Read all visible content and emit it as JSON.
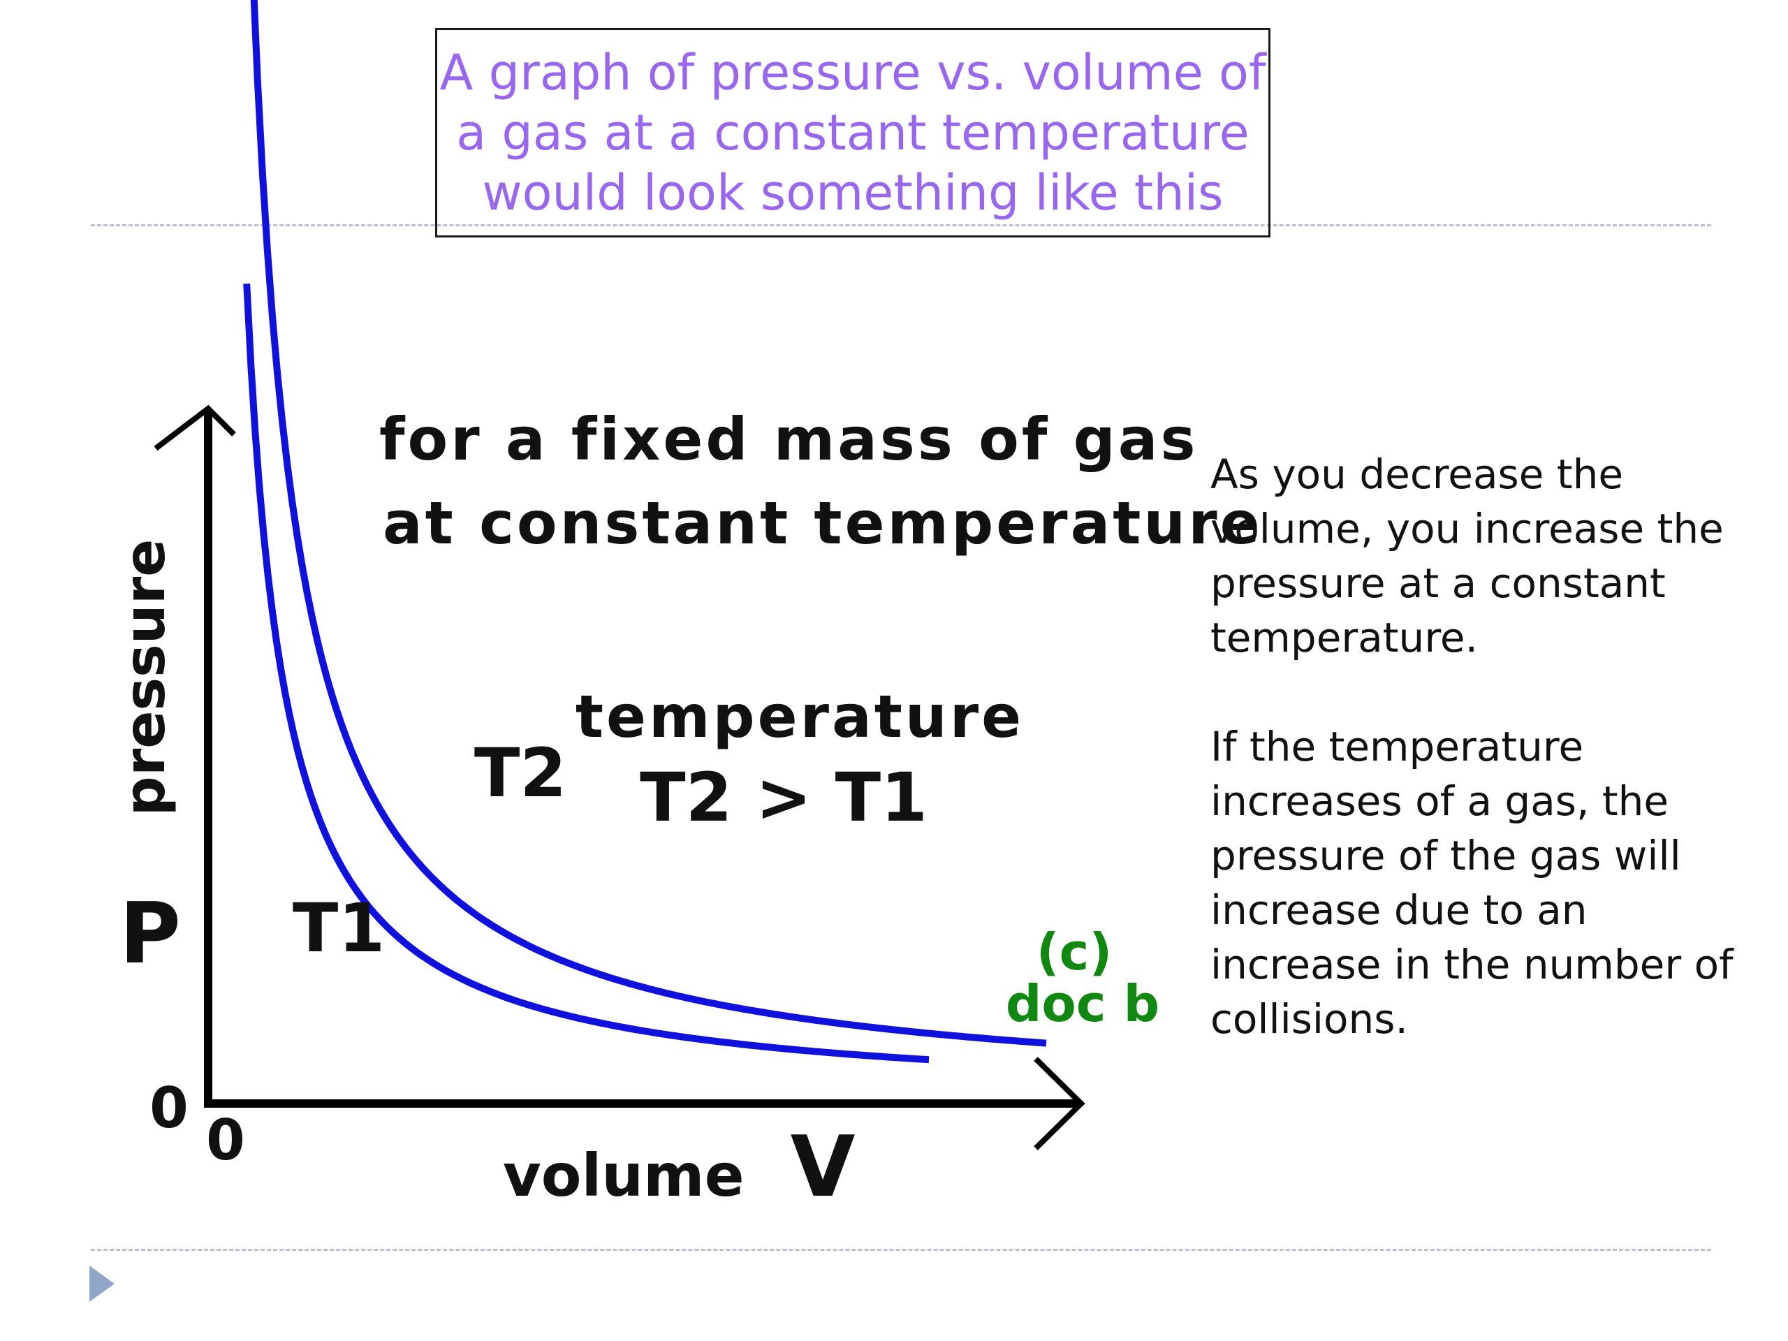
{
  "header": {
    "title_lines": [
      "A graph of pressure vs. volume of",
      "a gas at a constant temperature",
      "would look something like this"
    ],
    "title_color": "#9966ee"
  },
  "chart_data": {
    "type": "line",
    "title_lines": [
      "for a fixed mass of gas",
      "at constant temperature"
    ],
    "ylabel": "pressure",
    "ylabel_symbol": "P",
    "xlabel": "volume",
    "xlabel_symbol": "V",
    "x_origin_label": "0",
    "y_origin_label": "0",
    "annotation_lines": [
      "temperature",
      "T2 > T1"
    ],
    "credit_lines": [
      "(c)",
      "doc b"
    ],
    "credit_color": "#118811",
    "line_color": "#1111dd",
    "grid": false,
    "series": [
      {
        "name": "T1",
        "k": 1.0,
        "v_range": [
          0.23,
          4.3
        ]
      },
      {
        "name": "T2",
        "k": 1.6,
        "v_range": [
          0.265,
          5.0
        ]
      }
    ]
  },
  "side_text": {
    "paragraphs": [
      "As you decrease the volume, you increase the pressure at a constant temperature.",
      "If the temperature increases of a gas, the pressure of the gas will increase due to an increase in the number of collisions."
    ]
  }
}
